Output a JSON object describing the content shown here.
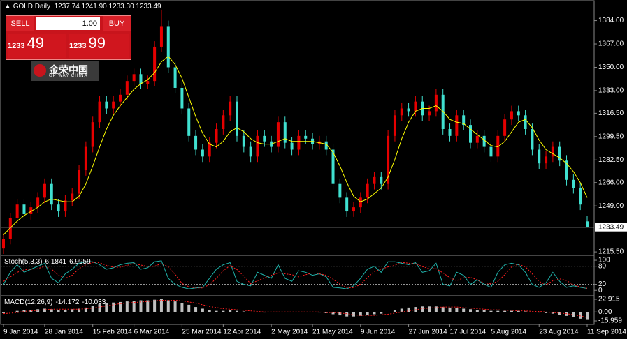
{
  "chart_data": [
    {
      "type": "candlestick",
      "title": "GOLD,Daily",
      "ohlc_labels": [
        "1237.74",
        "1241.90",
        "1233.30",
        "1233.49"
      ],
      "categories": [
        "9 Jan 2014",
        null,
        null,
        null,
        null,
        null,
        "28 Jan 2014",
        null,
        null,
        null,
        null,
        null,
        null,
        "15 Feb 2014",
        null,
        null,
        null,
        null,
        null,
        "6 Mar 2014",
        null,
        null,
        null,
        null,
        null,
        null,
        "25 Mar 2014",
        null,
        null,
        null,
        null,
        null,
        "12 Apr 2014",
        null,
        null,
        null,
        null,
        null,
        null,
        "2 May 2014",
        null,
        null,
        null,
        null,
        null,
        "21 May 2014",
        null,
        null,
        null,
        null,
        null,
        null,
        "9 Jun 2014",
        null,
        null,
        null,
        null,
        null,
        null,
        "27 Jun 2014",
        null,
        null,
        null,
        null,
        null,
        "17 Jul 2014",
        null,
        null,
        null,
        null,
        null,
        "5 Aug 2014",
        null,
        null,
        null,
        null,
        null,
        null,
        "23 Aug 2014",
        null,
        null,
        null,
        null,
        null,
        null,
        "11 Sep 2014"
      ],
      "open": [
        1218,
        1225,
        1240,
        1250,
        1243,
        1248,
        1255,
        1265,
        1250,
        1245,
        1253,
        1258,
        1275,
        1292,
        1310,
        1325,
        1320,
        1325,
        1330,
        1340,
        1345,
        1338,
        1340,
        1365,
        1380,
        1350,
        1335,
        1320,
        1300,
        1290,
        1285,
        1295,
        1305,
        1315,
        1325,
        1300,
        1292,
        1285,
        1300,
        1296,
        1292,
        1310,
        1295,
        1290,
        1300,
        1298,
        1294,
        1296,
        1290,
        1265,
        1255,
        1245,
        1248,
        1255,
        1265,
        1270,
        1265,
        1300,
        1315,
        1320,
        1318,
        1325,
        1315,
        1318,
        1330,
        1305,
        1300,
        1315,
        1308,
        1295,
        1300,
        1292,
        1285,
        1300,
        1312,
        1318,
        1315,
        1305,
        1290,
        1280,
        1285,
        1292,
        1282,
        1268,
        1262,
        1237.74
      ],
      "high": [
        1229,
        1244,
        1254,
        1254,
        1252,
        1259,
        1269,
        1269,
        1254,
        1257,
        1262,
        1279,
        1296,
        1314,
        1329,
        1329,
        1329,
        1334,
        1344,
        1349,
        1349,
        1344,
        1369,
        1392,
        1384,
        1354,
        1339,
        1324,
        1304,
        1294,
        1299,
        1309,
        1319,
        1329,
        1329,
        1304,
        1296,
        1304,
        1304,
        1300,
        1314,
        1314,
        1299,
        1304,
        1304,
        1302,
        1300,
        1300,
        1294,
        1269,
        1259,
        1252,
        1259,
        1269,
        1274,
        1274,
        1304,
        1319,
        1324,
        1324,
        1329,
        1329,
        1322,
        1334,
        1334,
        1309,
        1319,
        1319,
        1312,
        1304,
        1304,
        1296,
        1304,
        1316,
        1322,
        1322,
        1319,
        1309,
        1294,
        1289,
        1296,
        1296,
        1286,
        1272,
        1266,
        1241.9
      ],
      "low": [
        1214,
        1221,
        1236,
        1239,
        1239,
        1244,
        1251,
        1246,
        1241,
        1241,
        1249,
        1254,
        1271,
        1288,
        1306,
        1316,
        1316,
        1321,
        1326,
        1336,
        1334,
        1334,
        1336,
        1361,
        1346,
        1331,
        1316,
        1296,
        1286,
        1281,
        1281,
        1291,
        1301,
        1311,
        1296,
        1288,
        1281,
        1281,
        1292,
        1288,
        1288,
        1291,
        1286,
        1286,
        1294,
        1290,
        1290,
        1286,
        1261,
        1251,
        1241,
        1241,
        1244,
        1251,
        1261,
        1261,
        1261,
        1296,
        1311,
        1314,
        1314,
        1311,
        1311,
        1314,
        1301,
        1296,
        1296,
        1304,
        1291,
        1291,
        1288,
        1281,
        1281,
        1296,
        1308,
        1311,
        1301,
        1286,
        1276,
        1276,
        1281,
        1278,
        1264,
        1258,
        1246,
        1233.3
      ],
      "close": [
        1225,
        1240,
        1250,
        1243,
        1248,
        1255,
        1265,
        1250,
        1245,
        1253,
        1258,
        1275,
        1292,
        1310,
        1325,
        1320,
        1325,
        1330,
        1340,
        1345,
        1338,
        1340,
        1365,
        1380,
        1350,
        1335,
        1320,
        1300,
        1290,
        1285,
        1295,
        1305,
        1315,
        1325,
        1300,
        1292,
        1285,
        1300,
        1296,
        1292,
        1310,
        1295,
        1290,
        1300,
        1298,
        1294,
        1296,
        1290,
        1265,
        1255,
        1245,
        1248,
        1255,
        1265,
        1270,
        1265,
        1300,
        1315,
        1320,
        1318,
        1325,
        1315,
        1318,
        1330,
        1305,
        1300,
        1315,
        1308,
        1295,
        1300,
        1292,
        1285,
        1300,
        1312,
        1318,
        1315,
        1305,
        1290,
        1280,
        1285,
        1292,
        1282,
        1268,
        1262,
        1250,
        1233.49
      ],
      "up_color": "#e60000",
      "down_color": "#40e0d0",
      "lines": [
        {
          "color": "#ffff00",
          "values": [
            1228,
            1233,
            1238,
            1242,
            1245,
            1248,
            1252,
            1254,
            1253,
            1252,
            1252,
            1256,
            1265,
            1278,
            1292,
            1305,
            1315,
            1322,
            1328,
            1334,
            1338,
            1341,
            1346,
            1354,
            1358,
            1352,
            1342,
            1328,
            1314,
            1302,
            1294,
            1292,
            1296,
            1303,
            1306,
            1303,
            1298,
            1295,
            1294,
            1294,
            1296,
            1298,
            1296,
            1296,
            1296,
            1296,
            1295,
            1294,
            1288,
            1278,
            1266,
            1256,
            1252,
            1254,
            1258,
            1262,
            1270,
            1283,
            1298,
            1310,
            1318,
            1320,
            1320,
            1322,
            1318,
            1312,
            1310,
            1309,
            1305,
            1301,
            1297,
            1293,
            1292,
            1296,
            1303,
            1310,
            1312,
            1306,
            1297,
            1290,
            1287,
            1284,
            1280,
            1274,
            1266,
            1255
          ]
        }
      ],
      "ylim": [
        1213,
        1397
      ],
      "yticks": [
        {
          "value": 1215.5,
          "label": "1215.50"
        },
        {
          "value": 1249,
          "label": "1249.00"
        },
        {
          "value": 1266,
          "label": "1266.00"
        },
        {
          "value": 1282.5,
          "label": "1282.50"
        },
        {
          "value": 1299.5,
          "label": "1299.50"
        },
        {
          "value": 1316.5,
          "label": "1316.50"
        },
        {
          "value": 1333,
          "label": "1333.00"
        },
        {
          "value": 1350,
          "label": "1350.00"
        },
        {
          "value": 1367,
          "label": "1367.00"
        },
        {
          "value": 1384,
          "label": "1384.00"
        }
      ]
    },
    {
      "type": "line",
      "title": "Stoch(5,3,3)",
      "series": [
        {
          "color": "#20b2aa",
          "values": [
            20,
            60,
            85,
            60,
            70,
            80,
            90,
            40,
            25,
            55,
            70,
            90,
            95,
            95,
            85,
            70,
            75,
            85,
            90,
            92,
            70,
            75,
            95,
            98,
            40,
            20,
            10,
            5,
            8,
            10,
            40,
            70,
            85,
            92,
            30,
            20,
            15,
            60,
            50,
            40,
            85,
            40,
            30,
            65,
            60,
            50,
            55,
            45,
            10,
            8,
            5,
            15,
            40,
            70,
            80,
            60,
            95,
            95,
            90,
            85,
            92,
            60,
            65,
            90,
            20,
            15,
            60,
            50,
            20,
            35,
            20,
            10,
            60,
            85,
            90,
            85,
            60,
            20,
            10,
            25,
            60,
            30,
            10,
            15,
            10,
            6.1841
          ]
        },
        {
          "color": "#ff2020",
          "dashed": true,
          "values": [
            30,
            45,
            60,
            68,
            70,
            72,
            80,
            70,
            50,
            40,
            50,
            72,
            85,
            93,
            92,
            83,
            77,
            77,
            83,
            89,
            84,
            79,
            80,
            89,
            78,
            53,
            23,
            12,
            8,
            8,
            19,
            40,
            65,
            82,
            69,
            47,
            22,
            32,
            42,
            50,
            58,
            55,
            52,
            45,
            52,
            58,
            55,
            50,
            37,
            21,
            8,
            9,
            20,
            42,
            63,
            70,
            78,
            83,
            93,
            90,
            89,
            79,
            72,
            72,
            58,
            42,
            32,
            42,
            43,
            35,
            25,
            22,
            30,
            52,
            78,
            87,
            78,
            55,
            30,
            18,
            32,
            38,
            33,
            18,
            12,
            6.9959
          ]
        }
      ],
      "ylim": [
        -18,
        114
      ],
      "yticks": [
        0,
        20,
        80,
        100
      ],
      "levels": [
        20,
        80
      ]
    },
    {
      "type": "macd",
      "title": "MACD(12,26,9)",
      "series": [
        {
          "type": "bar",
          "color": "#c0c0c0",
          "values": [
            -2,
            0,
            2,
            3,
            4,
            5,
            6,
            5,
            4,
            4,
            5,
            6,
            8,
            11,
            14,
            16,
            17,
            18,
            19,
            20,
            21,
            21,
            22,
            22.9,
            21,
            19,
            16,
            13,
            9,
            6,
            3,
            2,
            2,
            3,
            2,
            1,
            0,
            0,
            -1,
            0,
            0,
            0,
            0,
            0,
            0,
            0,
            -1,
            -2,
            -4,
            -6,
            -8,
            -8,
            -7,
            -6,
            -4,
            -3,
            0,
            3,
            6,
            8,
            9,
            10,
            10,
            10,
            9,
            8,
            7,
            6,
            5,
            4,
            3,
            2,
            2,
            2,
            2,
            2,
            1,
            0,
            -1,
            -2,
            -3,
            -5,
            -7,
            -9,
            -12,
            -14.172
          ]
        },
        {
          "type": "line",
          "color": "#ff2020",
          "dashed": true,
          "values": [
            -3,
            -2,
            -1,
            1,
            2,
            3,
            4,
            5,
            5,
            5,
            5,
            5,
            6,
            7,
            9,
            11,
            13,
            15,
            16,
            17,
            18,
            19,
            20,
            21,
            21,
            21,
            20,
            18,
            16,
            13,
            10,
            8,
            6,
            5,
            4,
            3,
            2,
            1,
            0,
            0,
            0,
            0,
            0,
            0,
            0,
            0,
            0,
            -1,
            -1,
            -2,
            -3,
            -5,
            -6,
            -6,
            -6,
            -5,
            -4,
            -2,
            0,
            2,
            4,
            6,
            7,
            8,
            9,
            9,
            9,
            8,
            7,
            6,
            5,
            4,
            4,
            3,
            3,
            2,
            2,
            1,
            1,
            0,
            -1,
            -2,
            -3,
            -5,
            -7,
            -10.033
          ]
        }
      ],
      "ylim": [
        -22.2,
        27.9
      ],
      "yticks": [
        -15.959,
        {
          "value": 0,
          "label": "0.00"
        },
        22.915
      ]
    }
  ],
  "trade_panel": {
    "sell": "SELL",
    "buy": "BUY",
    "lot": "1.00",
    "bid_big": "1233",
    "bid_small": "49",
    "ask_big": "1233",
    "ask_small": "99"
  },
  "logo": {
    "name": "金荣中国",
    "sub": "GP WAY CHINA"
  }
}
